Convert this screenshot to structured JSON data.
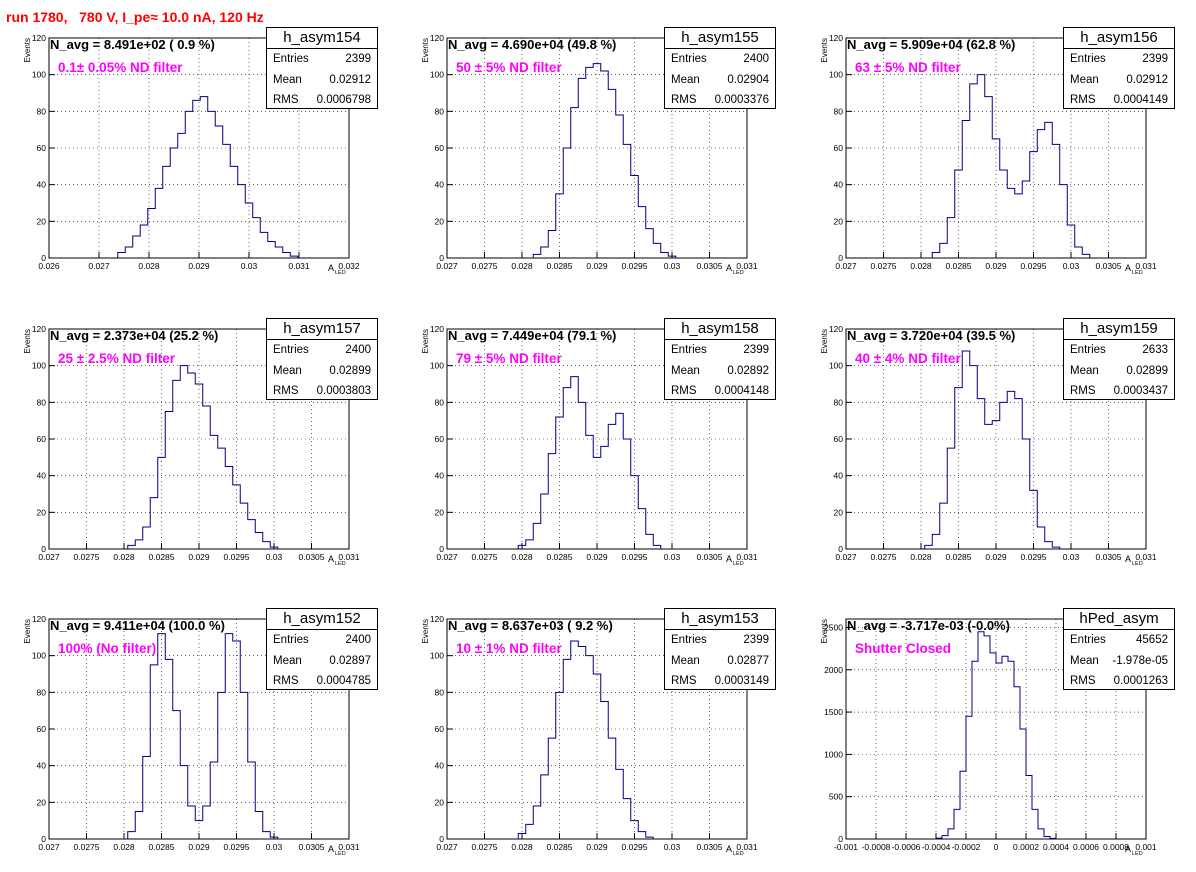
{
  "header": {
    "run_label": "run 1780,   780 V, I_pe≈ 10.0 nA, 120 Hz"
  },
  "colors": {
    "histogram": "#000080",
    "title_red": "#ff0000",
    "annotation_magenta": "#ff00ff"
  },
  "chart_data": [
    {
      "type": "bar",
      "title": "h_asym154",
      "ylabel": "Events",
      "xlabel": "A",
      "xlabel_sub": "LED",
      "xlim": [
        0.026,
        0.032
      ],
      "ylim": [
        0,
        120
      ],
      "xticks": [
        "0.026",
        "0.027",
        "0.028",
        "0.029",
        "0.03",
        "0.031",
        "0.032"
      ],
      "yticks": [
        "0",
        "20",
        "40",
        "60",
        "80",
        "100",
        "120"
      ],
      "grid": true,
      "n_avg": "N_avg = 8.491e+02 ( 0.9 %)",
      "filter": "0.1± 0.05% ND filter",
      "stats": {
        "entries": "2399",
        "mean": "0.02912",
        "rms": "0.0006798"
      },
      "x": [
        0.02745,
        0.0276,
        0.02775,
        0.0279,
        0.02805,
        0.0282,
        0.02835,
        0.0285,
        0.02865,
        0.0288,
        0.02895,
        0.0291,
        0.02925,
        0.0294,
        0.02955,
        0.0297,
        0.02985,
        0.03,
        0.03015,
        0.0303,
        0.03045,
        0.0306,
        0.03075,
        0.0309
      ],
      "y": [
        3,
        6,
        12,
        18,
        27,
        38,
        50,
        60,
        68,
        80,
        86,
        88,
        80,
        72,
        62,
        50,
        40,
        30,
        22,
        14,
        9,
        6,
        3,
        1
      ]
    },
    {
      "type": "bar",
      "title": "h_asym155",
      "ylabel": "Events",
      "xlabel": "A",
      "xlabel_sub": "LED",
      "xlim": [
        0.027,
        0.031
      ],
      "ylim": [
        0,
        120
      ],
      "xticks": [
        "0.027",
        "0.0275",
        "0.028",
        "0.0285",
        "0.029",
        "0.0295",
        "0.03",
        "0.0305",
        "0.031"
      ],
      "yticks": [
        "0",
        "20",
        "40",
        "60",
        "80",
        "100",
        "120"
      ],
      "grid": true,
      "n_avg": "N_avg = 4.690e+04 (49.8 %)",
      "filter": "50 ± 5% ND filter",
      "stats": {
        "entries": "2400",
        "mean": "0.02904",
        "rms": "0.0003376"
      },
      "x": [
        0.0282,
        0.0283,
        0.0284,
        0.0285,
        0.0286,
        0.0287,
        0.0288,
        0.0289,
        0.029,
        0.0291,
        0.0292,
        0.0293,
        0.0294,
        0.0295,
        0.0296,
        0.0297,
        0.0298,
        0.0299,
        0.03
      ],
      "y": [
        2,
        6,
        15,
        35,
        60,
        82,
        98,
        104,
        106,
        102,
        92,
        78,
        62,
        45,
        28,
        16,
        8,
        3,
        1
      ]
    },
    {
      "type": "bar",
      "title": "h_asym156",
      "ylabel": "Events",
      "xlabel": "A",
      "xlabel_sub": "LED",
      "xlim": [
        0.027,
        0.031
      ],
      "ylim": [
        0,
        120
      ],
      "xticks": [
        "0.027",
        "0.0275",
        "0.028",
        "0.0285",
        "0.029",
        "0.0295",
        "0.03",
        "0.0305",
        "0.031"
      ],
      "yticks": [
        "0",
        "20",
        "40",
        "60",
        "80",
        "100",
        "120"
      ],
      "grid": true,
      "n_avg": "N_avg = 5.909e+04 (62.8 %)",
      "filter": "63 ± 5% ND filter",
      "stats": {
        "entries": "2399",
        "mean": "0.02912",
        "rms": "0.0004149"
      },
      "x": [
        0.0282,
        0.0283,
        0.0284,
        0.0285,
        0.0286,
        0.0287,
        0.0288,
        0.0289,
        0.029,
        0.0291,
        0.0292,
        0.0293,
        0.0294,
        0.0295,
        0.0296,
        0.0297,
        0.0298,
        0.0299,
        0.03,
        0.0301,
        0.0302
      ],
      "y": [
        3,
        8,
        22,
        48,
        75,
        95,
        100,
        88,
        65,
        48,
        38,
        35,
        42,
        58,
        70,
        74,
        62,
        40,
        18,
        6,
        2
      ]
    },
    {
      "type": "bar",
      "title": "h_asym157",
      "ylabel": "Events",
      "xlabel": "A",
      "xlabel_sub": "LED",
      "xlim": [
        0.027,
        0.031
      ],
      "ylim": [
        0,
        120
      ],
      "xticks": [
        "0.027",
        "0.0275",
        "0.028",
        "0.0285",
        "0.029",
        "0.0295",
        "0.03",
        "0.0305",
        "0.031"
      ],
      "yticks": [
        "0",
        "20",
        "40",
        "60",
        "80",
        "100",
        "120"
      ],
      "grid": true,
      "n_avg": "N_avg = 2.373e+04 (25.2 %)",
      "filter": "25 ± 2.5% ND filter",
      "stats": {
        "entries": "2400",
        "mean": "0.02899",
        "rms": "0.0003803"
      },
      "x": [
        0.0281,
        0.0282,
        0.0283,
        0.0284,
        0.0285,
        0.0286,
        0.0287,
        0.0288,
        0.0289,
        0.029,
        0.0291,
        0.0292,
        0.0293,
        0.0294,
        0.0295,
        0.0296,
        0.0297,
        0.0298,
        0.0299,
        0.03
      ],
      "y": [
        2,
        5,
        12,
        28,
        50,
        75,
        92,
        100,
        96,
        90,
        78,
        62,
        55,
        45,
        35,
        25,
        16,
        9,
        4,
        1
      ]
    },
    {
      "type": "bar",
      "title": "h_asym158",
      "ylabel": "Events",
      "xlabel": "A",
      "xlabel_sub": "LED",
      "xlim": [
        0.027,
        0.031
      ],
      "ylim": [
        0,
        120
      ],
      "xticks": [
        "0.027",
        "0.0275",
        "0.028",
        "0.0285",
        "0.029",
        "0.0295",
        "0.03",
        "0.0305",
        "0.031"
      ],
      "yticks": [
        "0",
        "20",
        "40",
        "60",
        "80",
        "100",
        "120"
      ],
      "grid": true,
      "n_avg": "N_avg = 7.449e+04 (79.1 %)",
      "filter": "79 ± 5% ND filter",
      "stats": {
        "entries": "2399",
        "mean": "0.02892",
        "rms": "0.0004148"
      },
      "x": [
        0.028,
        0.0281,
        0.0282,
        0.0283,
        0.0284,
        0.0285,
        0.0286,
        0.0287,
        0.0288,
        0.0289,
        0.029,
        0.0291,
        0.0292,
        0.0293,
        0.0294,
        0.0295,
        0.0296,
        0.0297,
        0.0298
      ],
      "y": [
        2,
        5,
        14,
        30,
        52,
        72,
        88,
        94,
        80,
        62,
        50,
        56,
        68,
        74,
        60,
        40,
        22,
        8,
        2
      ]
    },
    {
      "type": "bar",
      "title": "h_asym159",
      "ylabel": "Events",
      "xlabel": "A",
      "xlabel_sub": "LED",
      "xlim": [
        0.027,
        0.031
      ],
      "ylim": [
        0,
        120
      ],
      "xticks": [
        "0.027",
        "0.0275",
        "0.028",
        "0.0285",
        "0.029",
        "0.0295",
        "0.03",
        "0.0305",
        "0.031"
      ],
      "yticks": [
        "0",
        "20",
        "40",
        "60",
        "80",
        "100",
        "120"
      ],
      "grid": true,
      "n_avg": "N_avg = 3.720e+04 (39.5 %)",
      "filter": "40 ± 4% ND filter",
      "stats": {
        "entries": "2633",
        "mean": "0.02899",
        "rms": "0.0003437"
      },
      "x": [
        0.0281,
        0.0282,
        0.0283,
        0.0284,
        0.0285,
        0.0286,
        0.0287,
        0.0288,
        0.0289,
        0.029,
        0.0291,
        0.0292,
        0.0293,
        0.0294,
        0.0295,
        0.0296,
        0.0297,
        0.0298
      ],
      "y": [
        2,
        8,
        25,
        55,
        88,
        108,
        100,
        82,
        68,
        70,
        80,
        86,
        82,
        60,
        32,
        12,
        4,
        1
      ]
    },
    {
      "type": "bar",
      "title": "h_asym152",
      "ylabel": "Events",
      "xlabel": "A",
      "xlabel_sub": "LED",
      "xlim": [
        0.027,
        0.031
      ],
      "ylim": [
        0,
        120
      ],
      "xticks": [
        "0.027",
        "0.0275",
        "0.028",
        "0.0285",
        "0.029",
        "0.0295",
        "0.03",
        "0.0305",
        "0.031"
      ],
      "yticks": [
        "0",
        "20",
        "40",
        "60",
        "80",
        "100",
        "120"
      ],
      "grid": true,
      "n_avg": "N_avg = 9.411e+04 (100.0 %)",
      "filter": "100% (No filter)",
      "stats": {
        "entries": "2400",
        "mean": "0.02897",
        "rms": "0.0004785"
      },
      "x": [
        0.0281,
        0.0282,
        0.0283,
        0.0284,
        0.0285,
        0.0286,
        0.0287,
        0.0288,
        0.0289,
        0.029,
        0.0291,
        0.0292,
        0.0293,
        0.0294,
        0.0295,
        0.0296,
        0.0297,
        0.0298,
        0.0299,
        0.03
      ],
      "y": [
        4,
        15,
        45,
        95,
        112,
        98,
        70,
        40,
        18,
        10,
        18,
        42,
        80,
        112,
        108,
        80,
        42,
        15,
        4,
        1
      ]
    },
    {
      "type": "bar",
      "title": "h_asym153",
      "ylabel": "Events",
      "xlabel": "A",
      "xlabel_sub": "LED",
      "xlim": [
        0.027,
        0.031
      ],
      "ylim": [
        0,
        120
      ],
      "xticks": [
        "0.027",
        "0.0275",
        "0.028",
        "0.0285",
        "0.029",
        "0.0295",
        "0.03",
        "0.0305",
        "0.031"
      ],
      "yticks": [
        "0",
        "20",
        "40",
        "60",
        "80",
        "100",
        "120"
      ],
      "grid": true,
      "n_avg": "N_avg = 8.637e+03 ( 9.2 %)",
      "filter": "10 ± 1% ND filter",
      "stats": {
        "entries": "2399",
        "mean": "0.02877",
        "rms": "0.0003149"
      },
      "x": [
        0.028,
        0.0281,
        0.0282,
        0.0283,
        0.0284,
        0.0285,
        0.0286,
        0.0287,
        0.0288,
        0.0289,
        0.029,
        0.0291,
        0.0292,
        0.0293,
        0.0294,
        0.0295,
        0.0296,
        0.0297
      ],
      "y": [
        3,
        8,
        18,
        35,
        55,
        80,
        98,
        108,
        105,
        100,
        90,
        75,
        55,
        38,
        22,
        10,
        4,
        1
      ]
    },
    {
      "type": "bar",
      "title": "hPed_asym",
      "ylabel": "Events",
      "xlabel": "A",
      "xlabel_sub": "LED",
      "xlim": [
        -0.001,
        0.001
      ],
      "ylim": [
        0,
        2600
      ],
      "xticks": [
        "-0.001",
        "-0.0008",
        "-0.0006",
        "-0.0004",
        "-0.0002",
        "0",
        "0.0002",
        "0.0004",
        "0.0006",
        "0.0008",
        "0.001"
      ],
      "yticks": [
        "0",
        "500",
        "1000",
        "1500",
        "2000",
        "2500"
      ],
      "grid": true,
      "n_avg": "N_avg = -3.717e-03 (-0.0%)",
      "filter": "Shutter Closed",
      "stats": {
        "entries": "45652",
        "mean": "-1.978e-05",
        "rms": "0.0001263"
      },
      "x": [
        -0.00038,
        -0.00034,
        -0.0003,
        -0.00026,
        -0.00022,
        -0.00018,
        -0.00014,
        -0.0001,
        -6e-05,
        -2e-05,
        2e-05,
        6e-05,
        0.0001,
        0.00014,
        0.00018,
        0.00022,
        0.00026,
        0.0003,
        0.00034,
        0.00038
      ],
      "y": [
        10,
        40,
        120,
        350,
        800,
        1450,
        2100,
        2450,
        2400,
        2200,
        2080,
        2160,
        2100,
        1800,
        1300,
        750,
        350,
        120,
        30,
        8
      ]
    }
  ]
}
